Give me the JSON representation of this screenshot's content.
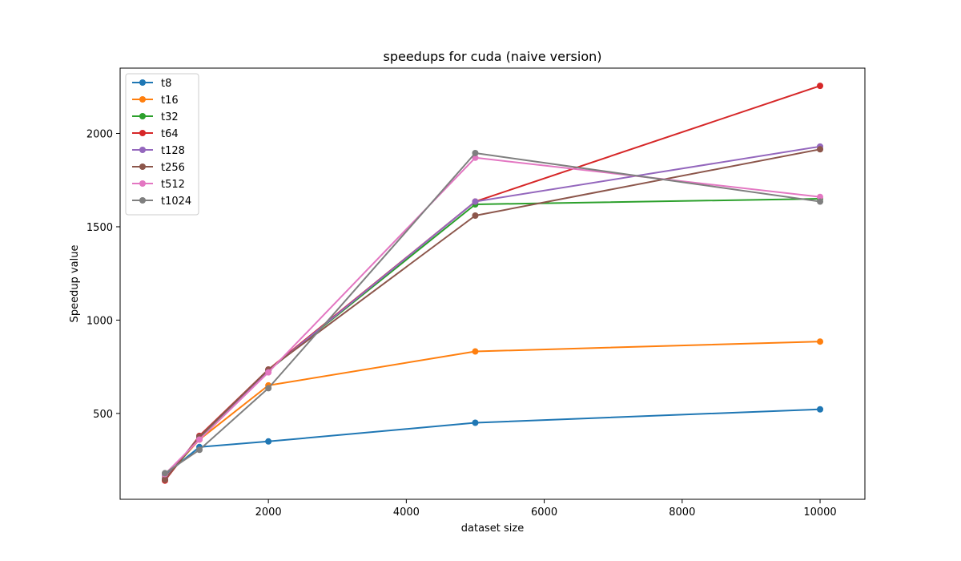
{
  "chart_data": {
    "type": "line",
    "title": "speedups for cuda (naive version)",
    "xlabel": "dataset size",
    "ylabel": "Speedup value",
    "xlim": [
      -150,
      10650
    ],
    "ylim": [
      40,
      2350
    ],
    "xticks": [
      2000,
      4000,
      6000,
      8000,
      10000
    ],
    "yticks": [
      500,
      1000,
      1500,
      2000
    ],
    "x": [
      500,
      1000,
      2000,
      5000,
      10000
    ],
    "grid": false,
    "legend_position": "upper-left",
    "series": [
      {
        "name": "t8",
        "color": "#1f77b4",
        "values": [
          170,
          320,
          350,
          450,
          522
        ]
      },
      {
        "name": "t16",
        "color": "#ff7f0e",
        "values": [
          155,
          360,
          650,
          832,
          885
        ]
      },
      {
        "name": "t32",
        "color": "#2ca02c",
        "values": [
          145,
          370,
          730,
          1620,
          1650
        ]
      },
      {
        "name": "t64",
        "color": "#d62728",
        "values": [
          140,
          380,
          735,
          1635,
          2255
        ]
      },
      {
        "name": "t128",
        "color": "#9467bd",
        "values": [
          150,
          375,
          730,
          1635,
          1930
        ]
      },
      {
        "name": "t256",
        "color": "#8c564b",
        "values": [
          145,
          375,
          735,
          1560,
          1915
        ]
      },
      {
        "name": "t512",
        "color": "#e377c2",
        "values": [
          175,
          360,
          720,
          1870,
          1660
        ]
      },
      {
        "name": "t1024",
        "color": "#7f7f7f",
        "values": [
          180,
          305,
          635,
          1895,
          1635
        ]
      }
    ]
  }
}
